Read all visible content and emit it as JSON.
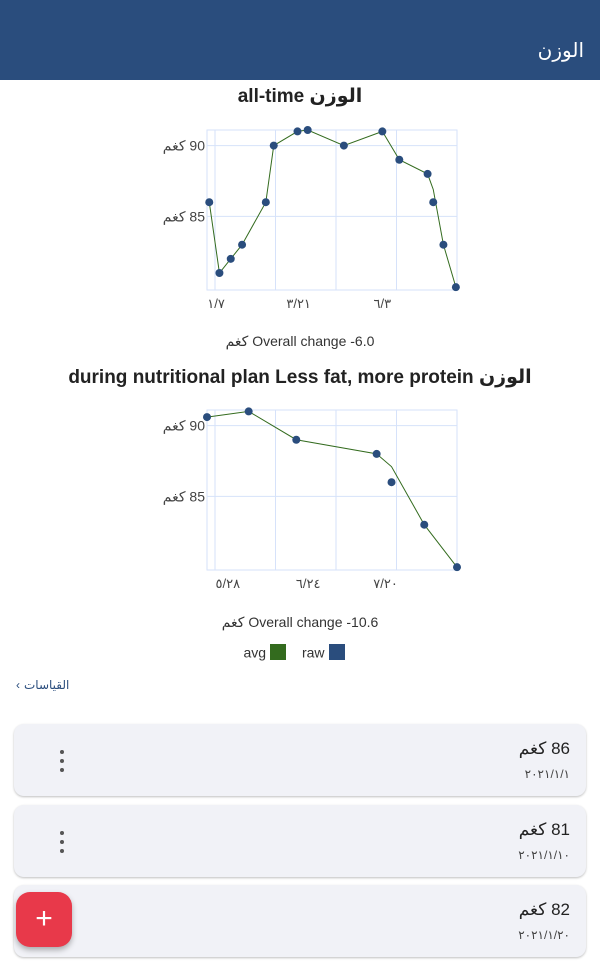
{
  "appbar": {
    "title": "الوزن"
  },
  "charts_text": [
    {
      "title": "الوزن all-time",
      "overall_change": "Overall change -6.0 كغم"
    },
    {
      "title": "الوزن during nutritional plan Less fat, more protein",
      "overall_change": "Overall change -10.6 كغم"
    }
  ],
  "legend": {
    "avg": "avg",
    "raw": "raw"
  },
  "colors": {
    "appbar": "#2a4d7d",
    "raw": "#2a4d7d",
    "avg": "#336b1e",
    "grid": "#d6e2fa",
    "fab": "#e8394a"
  },
  "breadcrumb": {
    "label": "القياسات",
    "icon": "chevron-left-icon"
  },
  "entries": [
    {
      "weight": "86 كغم",
      "date": "٢٠٢١/١/١"
    },
    {
      "weight": "81 كغم",
      "date": "٢٠٢١/١/١٠"
    },
    {
      "weight": "82 كغم",
      "date": "٢٠٢١/١/٢٠"
    }
  ],
  "fab": {
    "label": "+",
    "icon": "plus-icon"
  },
  "chart_data": [
    {
      "type": "line",
      "title": "الوزن all-time",
      "ylim": [
        79.8,
        91.1
      ],
      "xlim": [
        "2020-12-30",
        "2021-08-08"
      ],
      "grid": true,
      "yticks": [
        {
          "value": 85,
          "label": "85 كغم"
        },
        {
          "value": 90,
          "label": "90 كغم"
        }
      ],
      "xticks": [
        {
          "value": "2021-01-07",
          "label": "١/٧"
        },
        {
          "value": "2021-03-21",
          "label": "٣/٢١"
        },
        {
          "value": "2021-06-03",
          "label": "٦/٣"
        }
      ],
      "series": [
        {
          "name": "raw",
          "kind": "points",
          "x": [
            "2021-01-01",
            "2021-01-10",
            "2021-01-20",
            "2021-01-30",
            "2021-02-20",
            "2021-02-27",
            "2021-03-20",
            "2021-03-29",
            "2021-04-30",
            "2021-06-03",
            "2021-06-18",
            "2021-07-13",
            "2021-07-18",
            "2021-07-27",
            "2021-08-07"
          ],
          "y": [
            86,
            81,
            82,
            83,
            86,
            90,
            91,
            91.1,
            90,
            91,
            89,
            88,
            86,
            83,
            80
          ]
        },
        {
          "name": "avg",
          "kind": "line",
          "x": [
            "2021-01-01",
            "2021-01-10",
            "2021-01-20",
            "2021-01-30",
            "2021-02-20",
            "2021-02-27",
            "2021-03-20",
            "2021-03-29",
            "2021-04-30",
            "2021-06-03",
            "2021-06-18",
            "2021-07-13",
            "2021-07-18",
            "2021-07-27",
            "2021-08-07"
          ],
          "y": [
            86,
            81,
            82,
            83,
            86,
            90,
            91,
            91.1,
            90,
            91,
            89,
            88,
            86.9,
            83,
            80
          ]
        }
      ]
    },
    {
      "type": "line",
      "title": "الوزن during nutritional plan Less fat, more protein",
      "ylim": [
        79.8,
        91.1
      ],
      "xlim": [
        "2021-05-21",
        "2021-08-13"
      ],
      "grid": true,
      "yticks": [
        {
          "value": 85,
          "label": "85 كغم"
        },
        {
          "value": 90,
          "label": "90 كغم"
        }
      ],
      "xticks": [
        {
          "value": "2021-05-28",
          "label": "٥/٢٨"
        },
        {
          "value": "2021-06-24",
          "label": "٦/٢٤"
        },
        {
          "value": "2021-07-20",
          "label": "٧/٢٠"
        }
      ],
      "series": [
        {
          "name": "raw",
          "kind": "points",
          "x": [
            "2021-05-21",
            "2021-06-04",
            "2021-06-20",
            "2021-07-17",
            "2021-07-22",
            "2021-08-02",
            "2021-08-13"
          ],
          "y": [
            90.6,
            91,
            89,
            88,
            86,
            83,
            80
          ]
        },
        {
          "name": "avg",
          "kind": "line",
          "x": [
            "2021-05-21",
            "2021-06-04",
            "2021-06-20",
            "2021-07-17",
            "2021-07-22",
            "2021-08-02",
            "2021-08-13"
          ],
          "y": [
            90.6,
            91,
            89,
            88,
            87.1,
            83,
            80
          ]
        }
      ]
    }
  ]
}
